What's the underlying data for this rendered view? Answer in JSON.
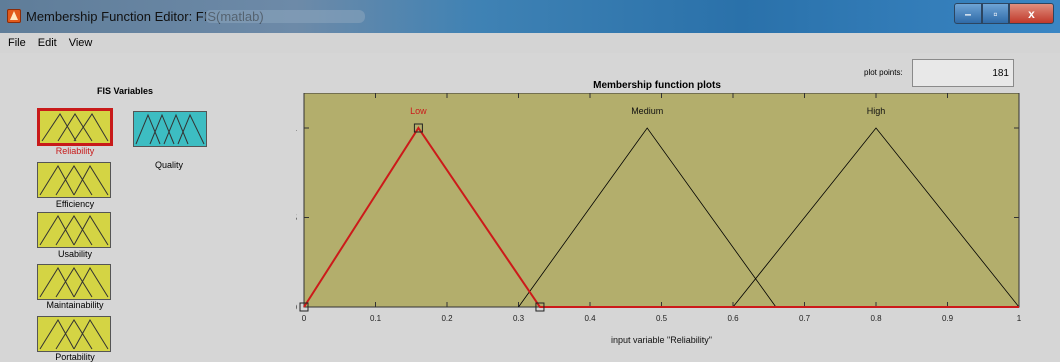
{
  "window": {
    "title": "Membership Function Editor: FIS(matlab)",
    "controls": {
      "minimize": "–",
      "maximize": "▫",
      "close": "x"
    }
  },
  "menu": {
    "items": [
      "File",
      "Edit",
      "View"
    ]
  },
  "fis_panel": {
    "title": "FIS Variables",
    "inputs": [
      "Reliability",
      "Efficiency",
      "Usability",
      "Maintainability",
      "Portability"
    ],
    "output": "Quality",
    "selected": "Reliability",
    "colors": {
      "input_fill": "#d4d444",
      "output_fill": "#3dbdc2",
      "selected_border": "#c81a1a"
    }
  },
  "plot_points": {
    "label": "plot points:",
    "value": "181"
  },
  "plot": {
    "title": "Membership function plots",
    "xlabel": "input variable \"Reliability\"",
    "colors": {
      "background": "#b3ae6c",
      "selected_line": "#cc1a1a",
      "line": "#000000"
    }
  },
  "chart_data": {
    "type": "line",
    "title": "Membership function plots",
    "xlabel": "input variable \"Reliability\"",
    "ylabel": "",
    "xlim": [
      0,
      1
    ],
    "ylim": [
      0,
      1
    ],
    "xticks": [
      "0",
      "0.1",
      "0.2",
      "0.3",
      "0.4",
      "0.5",
      "0.6",
      "0.7",
      "0.8",
      "0.9",
      "1"
    ],
    "yticks": [
      "0",
      "0.5",
      "1"
    ],
    "series": [
      {
        "name": "Low",
        "shape": "triangle",
        "params": [
          0,
          0.16,
          0.33
        ],
        "selected": true
      },
      {
        "name": "Medium",
        "shape": "triangle",
        "params": [
          0.3,
          0.48,
          0.66
        ],
        "selected": false
      },
      {
        "name": "High",
        "shape": "triangle",
        "params": [
          0.6,
          0.8,
          1.0
        ],
        "selected": false
      }
    ]
  }
}
